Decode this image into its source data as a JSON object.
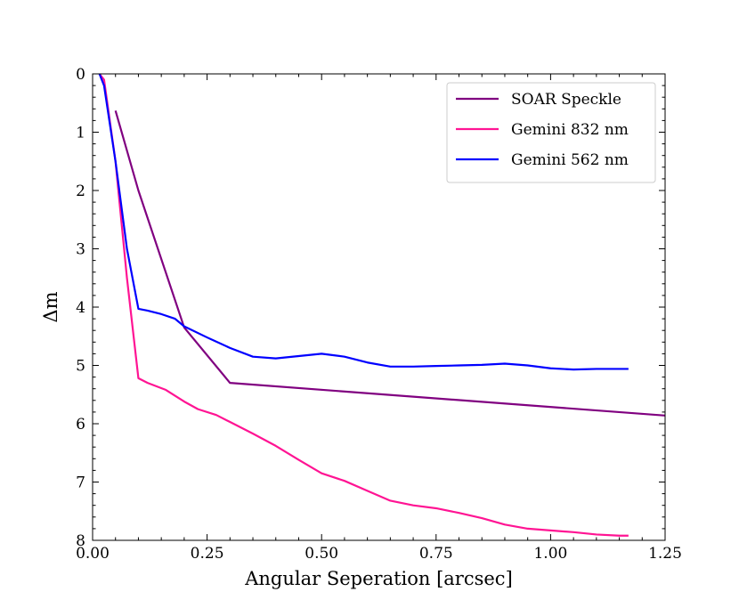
{
  "chart_data": {
    "type": "line",
    "title": "",
    "xlabel": "Angular Seperation [arcsec]",
    "ylabel": "Δm",
    "xlim": [
      0.0,
      1.25
    ],
    "ylim": [
      0,
      8
    ],
    "y_inverted": true,
    "grid": false,
    "legend_position": "top-right",
    "x_ticks": [
      0.0,
      0.25,
      0.5,
      0.75,
      1.0,
      1.25
    ],
    "x_tick_labels": [
      "0.00",
      "0.25",
      "0.50",
      "0.75",
      "1.00",
      "1.25"
    ],
    "y_ticks": [
      0,
      1,
      2,
      3,
      4,
      5,
      6,
      7,
      8
    ],
    "y_tick_labels": [
      "0",
      "1",
      "2",
      "3",
      "4",
      "5",
      "6",
      "7",
      "8"
    ],
    "series": [
      {
        "name": "SOAR Speckle",
        "color": "#800080",
        "x": [
          0.05,
          0.1,
          0.2,
          0.3,
          1.25
        ],
        "y": [
          0.63,
          2.0,
          4.35,
          5.3,
          5.86
        ]
      },
      {
        "name": "Gemini 832 nm",
        "color": "#ff1493",
        "x": [
          0.015,
          0.025,
          0.05,
          0.075,
          0.1,
          0.12,
          0.16,
          0.2,
          0.23,
          0.27,
          0.3,
          0.35,
          0.4,
          0.45,
          0.5,
          0.55,
          0.6,
          0.65,
          0.7,
          0.75,
          0.8,
          0.85,
          0.9,
          0.95,
          1.0,
          1.05,
          1.1,
          1.15,
          1.17
        ],
        "y": [
          0.0,
          0.1,
          1.5,
          3.5,
          5.22,
          5.3,
          5.42,
          5.62,
          5.75,
          5.85,
          5.97,
          6.17,
          6.38,
          6.62,
          6.85,
          6.98,
          7.15,
          7.32,
          7.4,
          7.45,
          7.53,
          7.62,
          7.73,
          7.8,
          7.83,
          7.86,
          7.9,
          7.92,
          7.92
        ]
      },
      {
        "name": "Gemini 562 nm",
        "color": "#0000ff",
        "x": [
          0.015,
          0.025,
          0.05,
          0.075,
          0.1,
          0.12,
          0.15,
          0.18,
          0.2,
          0.25,
          0.3,
          0.35,
          0.4,
          0.45,
          0.5,
          0.55,
          0.6,
          0.65,
          0.7,
          0.75,
          0.8,
          0.85,
          0.9,
          0.95,
          1.0,
          1.05,
          1.1,
          1.15,
          1.17
        ],
        "y": [
          0.0,
          0.2,
          1.5,
          3.0,
          4.03,
          4.06,
          4.12,
          4.2,
          4.33,
          4.52,
          4.7,
          4.85,
          4.88,
          4.84,
          4.8,
          4.85,
          4.95,
          5.02,
          5.02,
          5.01,
          5.0,
          4.99,
          4.97,
          5.0,
          5.05,
          5.07,
          5.06,
          5.06,
          5.06
        ]
      }
    ]
  }
}
